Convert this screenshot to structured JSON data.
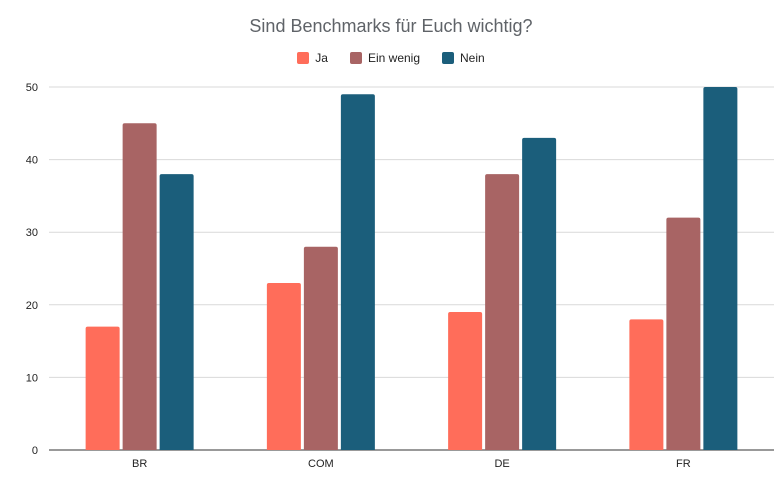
{
  "chart_data": {
    "type": "bar",
    "title": "Sind Benchmarks für Euch wichtig?",
    "categories": [
      "BR",
      "COM",
      "DE",
      "FR"
    ],
    "series": [
      {
        "name": "Ja",
        "values": [
          17,
          23,
          19,
          18
        ],
        "color": "#ff6d5a"
      },
      {
        "name": "Ein wenig",
        "values": [
          45,
          28,
          38,
          32
        ],
        "color": "#a86464"
      },
      {
        "name": "Nein",
        "values": [
          38,
          49,
          43,
          50
        ],
        "color": "#1b5e7b"
      }
    ],
    "ylim": [
      0,
      50
    ],
    "yticks": [
      0,
      10,
      20,
      30,
      40,
      50
    ],
    "legend_position": "top-center",
    "grid": true,
    "colors": {
      "gridline": "#d9d9d9",
      "axis": "#333333",
      "tick_label": "#222222"
    }
  }
}
